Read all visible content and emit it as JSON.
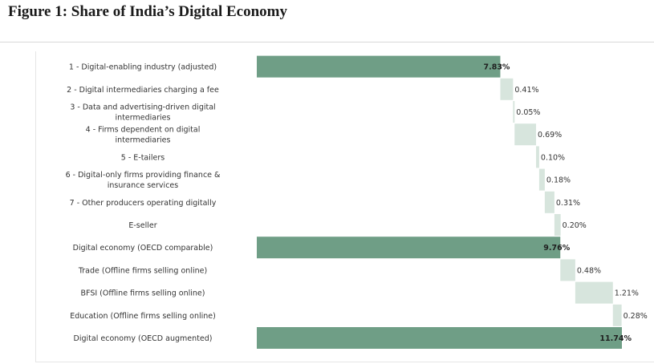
{
  "page": {
    "title": "Figure 1: Share of India’s Digital Economy"
  },
  "colors": {
    "total_bar": "#6f9e86",
    "step_bar": "#d7e5dd",
    "highlight_label": "#e02020",
    "label_text": "#333333"
  },
  "chart_data": {
    "type": "bar",
    "subtype": "waterfall",
    "title": "",
    "xlabel": "",
    "ylabel": "",
    "xlim": [
      0,
      11.74
    ],
    "grid": false,
    "legend": "none",
    "categories": [
      "1 - Digital-enabling industry (adjusted)",
      "2 - Digital intermediaries charging a fee",
      "3 - Data and advertising-driven digital intermediaries",
      "4 - Firms dependent on digital intermediaries",
      "5 - E-tailers",
      "6 - Digital-only firms providing finance & insurance services",
      "7 - Other producers operating digitally",
      "E-seller",
      "Digital economy (OECD comparable)",
      "Trade (Offline firms selling online)",
      "BFSI (Offline firms selling online)",
      "Education (Offline firms selling online)",
      "Digital economy (OECD augmented)"
    ],
    "label_lines": [
      [
        "1 - Digital-enabling industry (adjusted)"
      ],
      [
        "2 - Digital intermediaries charging a fee"
      ],
      [
        "3 - Data and advertising-driven digital",
        "intermediaries"
      ],
      [
        "4 - Firms dependent on digital",
        "intermediaries"
      ],
      [
        "5 - E-tailers"
      ],
      [
        "6 - Digital-only firms providing finance &",
        "insurance services"
      ],
      [
        "7 - Other producers operating digitally"
      ],
      [
        "E-seller"
      ],
      [
        "Digital economy (OECD comparable)"
      ],
      [
        "Trade (Offline firms selling online)"
      ],
      [
        "BFSI (Offline firms selling online)"
      ],
      [
        "Education (Offline firms selling online)"
      ],
      [
        "Digital economy (OECD augmented)"
      ]
    ],
    "values": [
      7.83,
      0.41,
      0.05,
      0.69,
      0.1,
      0.18,
      0.31,
      0.2,
      9.76,
      0.48,
      1.21,
      0.28,
      11.74
    ],
    "value_labels": [
      "7.83%",
      "0.41%",
      "0.05%",
      "0.69%",
      "0.10%",
      "0.18%",
      "0.31%",
      "0.20%",
      "9.76%",
      "0.48%",
      "1.21%",
      "0.28%",
      "11.74%"
    ],
    "bar_kind": [
      "total",
      "step",
      "step",
      "step",
      "step",
      "step",
      "step",
      "step",
      "total",
      "step",
      "step",
      "step",
      "total"
    ],
    "highlight_last_label": true
  }
}
